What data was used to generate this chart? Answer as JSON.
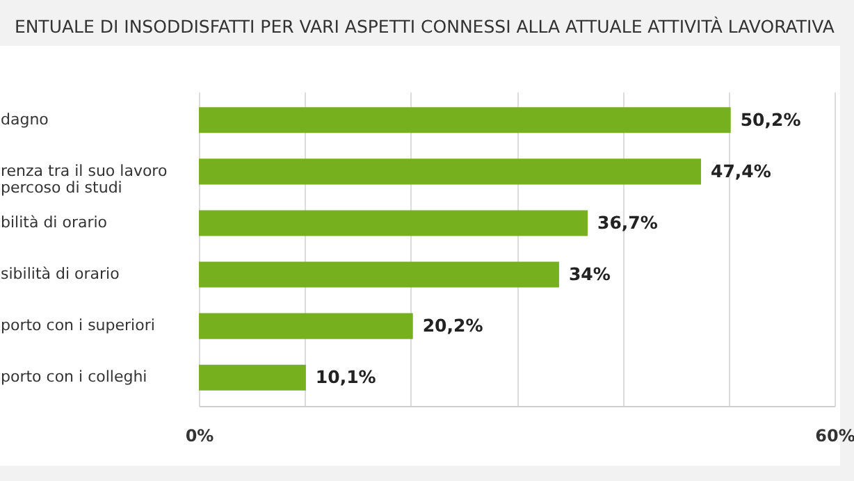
{
  "chart_data": {
    "type": "bar",
    "orientation": "horizontal",
    "title": "ENTUALE DI INSODDISFATTI PER VARI ASPETTI CONNESSI ALLA ATTUALE ATTIVITÀ LAVORATIVA",
    "categories": [
      "dagno",
      "renza tra il suo lavoro\npercoso di studi",
      "bilità di orario",
      "sibilità di orario",
      "porto con i superiori",
      "porto con i colleghi"
    ],
    "values": [
      50.2,
      47.4,
      36.7,
      34,
      20.2,
      10.1
    ],
    "value_labels": [
      "50,2%",
      "47,4%",
      "36,7%",
      "34%",
      "20,2%",
      "10,1%"
    ],
    "color": "#76b01e",
    "xlim": [
      0,
      60
    ],
    "xticks": [
      {
        "value": 0,
        "label": "0%"
      },
      {
        "value": 10,
        "label": null
      },
      {
        "value": 20,
        "label": null
      },
      {
        "value": 30,
        "label": null
      },
      {
        "value": 40,
        "label": null
      },
      {
        "value": 50,
        "label": null
      },
      {
        "value": 60,
        "label": "60%"
      }
    ],
    "grid": "x"
  }
}
